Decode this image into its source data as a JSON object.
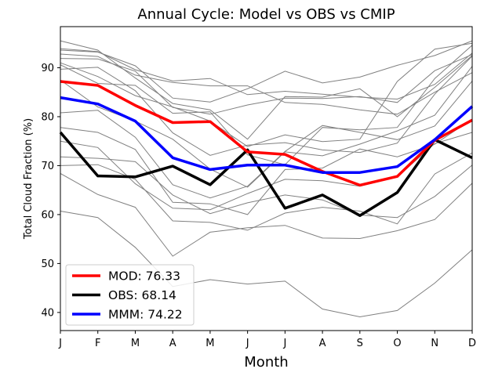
{
  "chart_data": {
    "type": "line",
    "title": "Annual Cycle: Model vs OBS vs CMIP",
    "xlabel": "Month",
    "ylabel": "Total Cloud Fraction (%)",
    "categories": [
      "J",
      "F",
      "M",
      "A",
      "M",
      "J",
      "J",
      "A",
      "S",
      "O",
      "N",
      "D"
    ],
    "ylim": [
      36.3,
      98.4
    ],
    "yticks": [
      40,
      50,
      60,
      70,
      80,
      90
    ],
    "grid": false,
    "legend_position": "bottom-left",
    "series": [
      {
        "name": "MOD",
        "legend": "MOD: 76.33",
        "color": "#ff0000",
        "values": [
          87.2,
          86.4,
          82.3,
          78.8,
          79.0,
          72.8,
          72.3,
          68.8,
          66.0,
          67.8,
          75.2,
          79.3
        ]
      },
      {
        "name": "OBS",
        "legend": "OBS: 68.14",
        "color": "#000000",
        "values": [
          76.8,
          67.9,
          67.7,
          69.9,
          66.1,
          73.2,
          61.3,
          64.0,
          59.8,
          64.5,
          75.3,
          71.6
        ]
      },
      {
        "name": "MMM",
        "legend": "MMM: 74.22",
        "color": "#0000ff",
        "values": [
          83.9,
          82.6,
          79.1,
          71.6,
          69.2,
          70.1,
          70.1,
          68.6,
          68.6,
          69.8,
          75.3,
          82.1
        ]
      }
    ],
    "cmip_color": "#808080",
    "cmip_series": [
      [
        95.5,
        93.6,
        87.9,
        82.7,
        81.4,
        75.4,
        84.1,
        84.0,
        85.7,
        80.0,
        86.0,
        92.5
      ],
      [
        93.9,
        93.3,
        89.6,
        87.3,
        87.8,
        84.5,
        85.2,
        84.6,
        84.0,
        83.6,
        86.6,
        93.0
      ],
      [
        93.6,
        93.2,
        90.4,
        83.8,
        83.0,
        85.7,
        89.3,
        86.9,
        88.1,
        90.5,
        92.5,
        95.5
      ],
      [
        92.8,
        92.3,
        88.5,
        87.0,
        86.3,
        86.3,
        82.9,
        82.5,
        81.4,
        80.5,
        85.0,
        89.0
      ],
      [
        91.9,
        91.8,
        89.3,
        81.9,
        80.5,
        82.4,
        83.8,
        83.7,
        84.1,
        82.9,
        89.4,
        92.7
      ],
      [
        91.0,
        88.2,
        84.3,
        82.0,
        79.1,
        73.9,
        76.3,
        74.9,
        75.4,
        87.2,
        93.8,
        95.0
      ],
      [
        90.6,
        86.8,
        86.4,
        80.7,
        81.0,
        72.2,
        70.2,
        77.8,
        77.3,
        77.8,
        87.8,
        94.6
      ],
      [
        89.7,
        90.1,
        85.3,
        76.7,
        72.1,
        74.2,
        74.7,
        73.2,
        72.7,
        74.6,
        84.6,
        92.4
      ],
      [
        87.5,
        82.0,
        79.1,
        75.4,
        69.3,
        65.6,
        72.8,
        72.0,
        74.4,
        77.1,
        80.3,
        90.3
      ],
      [
        80.8,
        81.3,
        75.8,
        66.1,
        63.4,
        65.8,
        72.9,
        78.2,
        76.8,
        75.3,
        78.1,
        87.3
      ],
      [
        77.8,
        76.8,
        73.3,
        62.5,
        62.2,
        60.0,
        69.2,
        69.5,
        73.4,
        71.8,
        74.4,
        79.5
      ],
      [
        75.0,
        73.7,
        66.3,
        61.3,
        61.0,
        64.3,
        67.2,
        66.9,
        65.8,
        67.7,
        74.5,
        76.8
      ],
      [
        71.8,
        71.5,
        70.8,
        64.0,
        60.2,
        62.4,
        64.0,
        63.0,
        59.9,
        59.4,
        63.7,
        70.1
      ],
      [
        70.0,
        70.2,
        67.2,
        58.7,
        58.4,
        56.8,
        60.3,
        61.5,
        60.7,
        58.1,
        68.3,
        72.6
      ],
      [
        68.4,
        64.1,
        61.5,
        51.5,
        56.4,
        57.3,
        57.8,
        55.2,
        55.1,
        56.7,
        59.0,
        66.4
      ],
      [
        60.7,
        59.4,
        53.3,
        45.3,
        46.7,
        45.8,
        46.4,
        40.7,
        39.1,
        40.4,
        46.0,
        52.8
      ]
    ]
  }
}
